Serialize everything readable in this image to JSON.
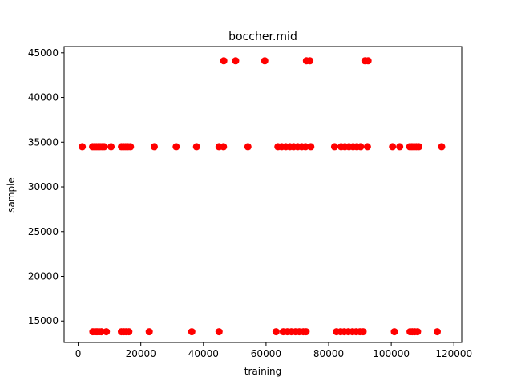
{
  "chart_data": {
    "type": "scatter",
    "title": "boccher.mid",
    "xlabel": "training",
    "ylabel": "sample",
    "xlim": [
      -4500,
      122500
    ],
    "ylim": [
      12600,
      45700
    ],
    "xticks": [
      0,
      20000,
      40000,
      60000,
      80000,
      100000,
      120000
    ],
    "xtick_labels": [
      "0",
      "20000",
      "40000",
      "60000",
      "80000",
      "100000",
      "120000"
    ],
    "yticks": [
      15000,
      20000,
      25000,
      30000,
      35000,
      40000,
      45000
    ],
    "ytick_labels": [
      "15000",
      "20000",
      "25000",
      "30000",
      "35000",
      "40000",
      "45000"
    ],
    "grid": false,
    "legend": "none",
    "marker_color": "#ff0000",
    "series": [
      {
        "x": [
          1300,
          4600,
          5200,
          5800,
          6400,
          7000,
          7600,
          8300,
          10500,
          13800,
          14500,
          15200,
          15900,
          16700,
          24300,
          31300,
          37800,
          45000,
          46400,
          54200,
          63800,
          65000,
          66300,
          67600,
          68800,
          70100,
          71400,
          72600,
          74300,
          81900,
          84000,
          85200,
          86500,
          87800,
          89000,
          90200,
          92400,
          100400,
          102700,
          105900,
          106600,
          107300,
          108000,
          108800,
          116100
        ],
        "y": [
          34500,
          34500,
          34500,
          34500,
          34500,
          34500,
          34500,
          34500,
          34500,
          34500,
          34500,
          34500,
          34500,
          34500,
          34500,
          34500,
          34500,
          34500,
          34500,
          34500,
          34500,
          34500,
          34500,
          34500,
          34500,
          34500,
          34500,
          34500,
          34500,
          34500,
          34500,
          34500,
          34500,
          34500,
          34500,
          34500,
          34500,
          34500,
          34500,
          34500,
          34500,
          34500,
          34500,
          34500,
          34500
        ]
      },
      {
        "x": [
          4700,
          5400,
          6000,
          6700,
          7400,
          9000,
          13800,
          14600,
          15300,
          16200,
          22700,
          36300,
          45000,
          63200,
          65500,
          66800,
          68100,
          69400,
          70600,
          71900,
          72800,
          82500,
          83800,
          85000,
          86300,
          87600,
          88800,
          90000,
          91000,
          101000,
          106000,
          106700,
          107500,
          108400,
          114700
        ],
        "y": [
          13800,
          13800,
          13800,
          13800,
          13800,
          13800,
          13800,
          13800,
          13800,
          13800,
          13800,
          13800,
          13800,
          13800,
          13800,
          13800,
          13800,
          13800,
          13800,
          13800,
          13800,
          13800,
          13800,
          13800,
          13800,
          13800,
          13800,
          13800,
          13800,
          13800,
          13800,
          13800,
          13800,
          13800,
          13800
        ]
      },
      {
        "x": [
          46500,
          50300,
          59600,
          72900,
          74000,
          91600,
          92600
        ],
        "y": [
          44100,
          44100,
          44100,
          44100,
          44100,
          44100,
          44100
        ]
      }
    ]
  }
}
